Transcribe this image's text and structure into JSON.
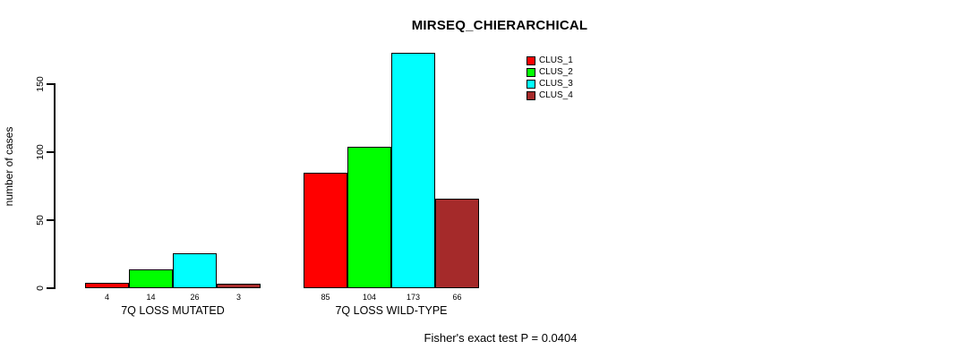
{
  "chart_data": {
    "type": "bar",
    "title": "MIRSEQ_CHIERARCHICAL",
    "ylabel": "number of cases",
    "xlabel": "",
    "categories": [
      "7Q LOSS MUTATED",
      "7Q LOSS WILD-TYPE"
    ],
    "series": [
      {
        "name": "CLUS_1",
        "color": "#FF0000",
        "values": [
          4,
          85
        ]
      },
      {
        "name": "CLUS_2",
        "color": "#00FF00",
        "values": [
          14,
          104
        ]
      },
      {
        "name": "CLUS_3",
        "color": "#00FFFF",
        "values": [
          26,
          173
        ]
      },
      {
        "name": "CLUS_4",
        "color": "#A52A2A",
        "values": [
          3,
          66
        ]
      }
    ],
    "y_ticks": [
      0,
      50,
      100,
      150
    ],
    "ylim": [
      0,
      173
    ],
    "bar_value_labels": [
      [
        4,
        14,
        26,
        3
      ],
      [
        85,
        104,
        173,
        66
      ]
    ],
    "grid": false,
    "legend_position": "top-right-of-plot",
    "bar_border_color": "#000000",
    "annotation": "Fisher's exact test P = 0.0404"
  }
}
